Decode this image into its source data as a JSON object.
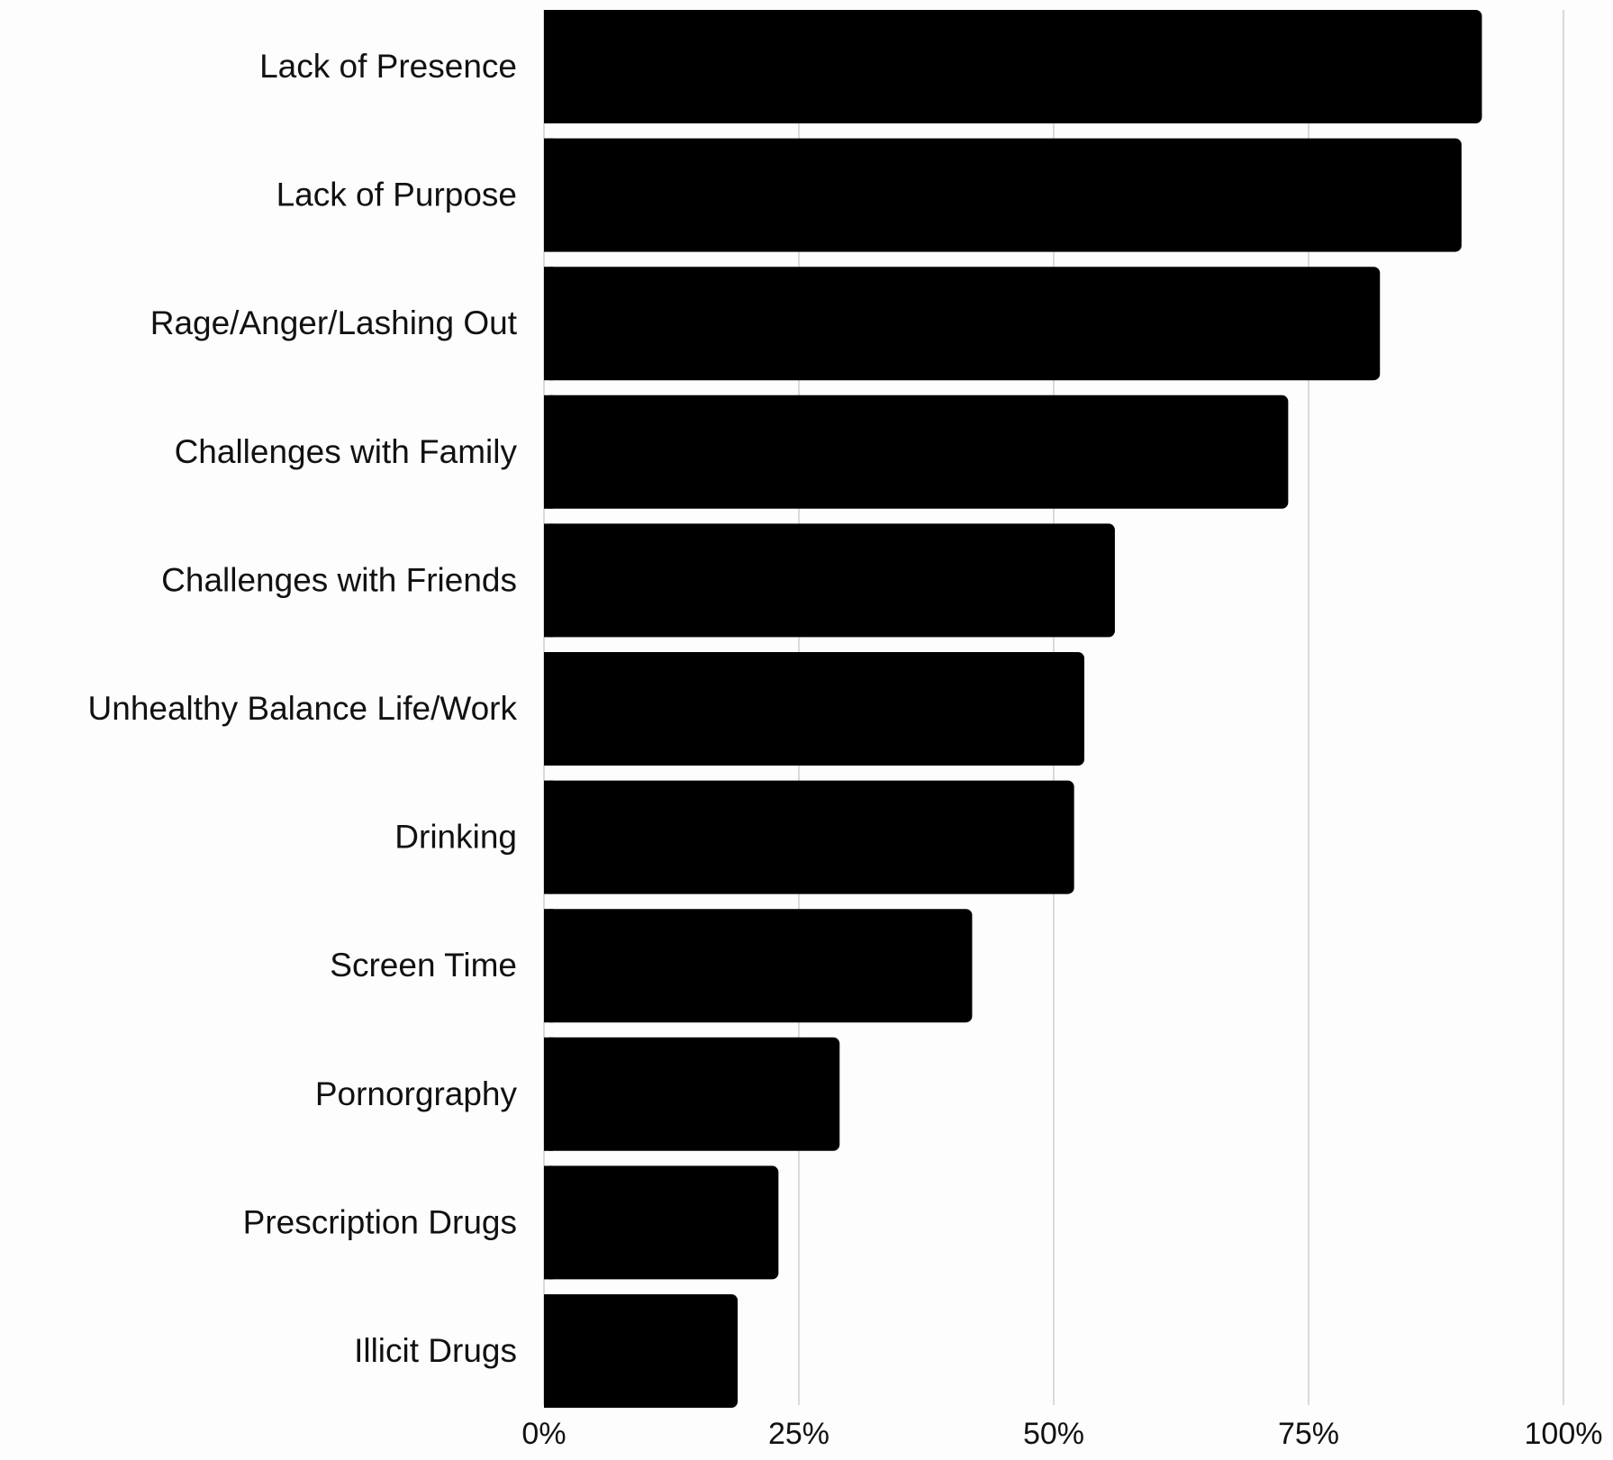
{
  "chart_data": {
    "type": "bar",
    "orientation": "horizontal",
    "categories": [
      "Lack of Presence",
      "Lack of Purpose",
      "Rage/Anger/Lashing Out",
      "Challenges with Family",
      "Challenges with Friends",
      "Unhealthy Balance Life/Work",
      "Drinking",
      "Screen Time",
      "Pornorgraphy",
      "Prescription Drugs",
      "Illicit Drugs"
    ],
    "values": [
      92,
      90,
      82,
      73,
      56,
      53,
      52,
      42,
      29,
      23,
      19
    ],
    "x_ticks": [
      "0%",
      "25%",
      "50%",
      "75%",
      "100%"
    ],
    "x_tick_values": [
      0,
      25,
      50,
      75,
      100
    ],
    "xlim": [
      0,
      100
    ],
    "title": "",
    "xlabel": "",
    "ylabel": "",
    "grid": "vertical",
    "legend": "none",
    "bar_color": "#000000",
    "grid_color": "#cfcfcf"
  }
}
